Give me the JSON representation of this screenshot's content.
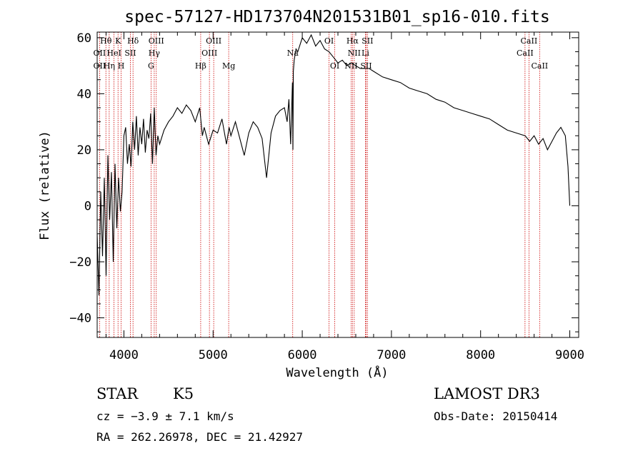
{
  "chart_data": {
    "type": "line",
    "title": "spec-57127-HD173704N201531B01_sp16-010.fits",
    "xlabel": "Wavelength (Å)",
    "ylabel": "Flux (relative)",
    "xlim": [
      3700,
      9100
    ],
    "ylim": [
      -47,
      62
    ],
    "xticks": [
      4000,
      5000,
      6000,
      7000,
      8000,
      9000
    ],
    "yticks": [
      -40,
      -20,
      0,
      20,
      40,
      60
    ],
    "xtick_labels": [
      "4000",
      "5000",
      "6000",
      "7000",
      "8000",
      "9000"
    ],
    "ytick_labels": [
      "−40",
      "−20",
      "0",
      "20",
      "40",
      "60"
    ],
    "series": [
      {
        "name": "flux",
        "x": [
          3700,
          3720,
          3740,
          3760,
          3780,
          3800,
          3820,
          3840,
          3860,
          3880,
          3900,
          3920,
          3940,
          3960,
          3980,
          4000,
          4020,
          4040,
          4060,
          4080,
          4100,
          4120,
          4140,
          4160,
          4180,
          4200,
          4220,
          4240,
          4260,
          4280,
          4300,
          4320,
          4340,
          4360,
          4380,
          4400,
          4450,
          4500,
          4550,
          4600,
          4650,
          4700,
          4750,
          4800,
          4850,
          4880,
          4900,
          4950,
          5000,
          5050,
          5100,
          5150,
          5180,
          5200,
          5250,
          5300,
          5350,
          5400,
          5450,
          5500,
          5550,
          5600,
          5650,
          5700,
          5750,
          5800,
          5830,
          5850,
          5870,
          5890,
          5895,
          5900,
          5910,
          5930,
          5950,
          5980,
          6000,
          6050,
          6100,
          6150,
          6200,
          6250,
          6300,
          6350,
          6400,
          6450,
          6500,
          6550,
          6600,
          6650,
          6700,
          6750,
          6800,
          6900,
          7000,
          7100,
          7200,
          7300,
          7400,
          7500,
          7600,
          7700,
          7800,
          7900,
          8000,
          8100,
          8200,
          8300,
          8400,
          8500,
          8550,
          8600,
          8650,
          8700,
          8750,
          8800,
          8850,
          8900,
          8950,
          8980,
          9000
        ],
        "y": [
          -10,
          -32,
          5,
          -18,
          10,
          -25,
          18,
          -5,
          12,
          -20,
          15,
          -8,
          10,
          -2,
          5,
          25,
          28,
          15,
          22,
          14,
          30,
          20,
          32,
          18,
          28,
          22,
          31,
          19,
          27,
          24,
          33,
          15,
          35,
          18,
          25,
          22,
          27,
          30,
          32,
          35,
          33,
          36,
          34,
          30,
          35,
          25,
          28,
          22,
          27,
          26,
          31,
          22,
          28,
          25,
          30,
          24,
          18,
          26,
          30,
          28,
          24,
          10,
          26,
          32,
          34,
          35,
          30,
          38,
          22,
          44,
          20,
          48,
          52,
          56,
          55,
          58,
          60,
          58,
          61,
          57,
          59,
          56,
          55,
          53,
          51,
          52,
          50,
          51,
          50,
          49,
          49,
          49,
          48,
          46,
          45,
          44,
          42,
          41,
          40,
          38,
          37,
          35,
          34,
          33,
          32,
          31,
          29,
          27,
          26,
          25,
          23,
          25,
          22,
          24,
          20,
          23,
          26,
          28,
          25,
          14,
          0
        ]
      }
    ],
    "line_markers": [
      {
        "name": "Oii",
        "x": 3727
      },
      {
        "name": "Hθ",
        "x": 3798
      },
      {
        "name": "Hη",
        "x": 3835
      },
      {
        "name": "HeI",
        "x": 3889
      },
      {
        "name": "K",
        "x": 3934
      },
      {
        "name": "H",
        "x": 3969
      },
      {
        "name": "Hδ",
        "x": 4102
      },
      {
        "name": "SII",
        "x": 4072
      },
      {
        "name": "G",
        "x": 4304
      },
      {
        "name": "Hγ",
        "x": 4340
      },
      {
        "name": "OIII",
        "x": 4363
      },
      {
        "name": "Hβ",
        "x": 4861
      },
      {
        "name": "OIII",
        "x": 4959
      },
      {
        "name": "OIII",
        "x": 5007
      },
      {
        "name": "Mg",
        "x": 5175
      },
      {
        "name": "Na",
        "x": 5893
      },
      {
        "name": "OI",
        "x": 6300
      },
      {
        "name": "OI",
        "x": 6364
      },
      {
        "name": "NII",
        "x": 6548
      },
      {
        "name": "Hα",
        "x": 6563
      },
      {
        "name": "NII",
        "x": 6583
      },
      {
        "name": "Li",
        "x": 6708
      },
      {
        "name": "SII",
        "x": 6716
      },
      {
        "name": "SII",
        "x": 6731
      },
      {
        "name": "CaII",
        "x": 8498
      },
      {
        "name": "CaII",
        "x": 8542
      },
      {
        "name": "CaII",
        "x": 8662
      }
    ],
    "line_labels": [
      {
        "text": "Hθ",
        "x": 3798,
        "row": 1
      },
      {
        "text": "K",
        "x": 3934,
        "row": 1
      },
      {
        "text": "Hδ",
        "x": 4102,
        "row": 1
      },
      {
        "text": "OIII",
        "x": 4363,
        "row": 1
      },
      {
        "text": "OIII",
        "x": 5007,
        "row": 1
      },
      {
        "text": "OI",
        "x": 6300,
        "row": 1
      },
      {
        "text": "Hα",
        "x": 6563,
        "row": 1
      },
      {
        "text": "SII",
        "x": 6731,
        "row": 1
      },
      {
        "text": "CaII",
        "x": 8542,
        "row": 1
      },
      {
        "text": "OII",
        "x": 3727,
        "row": 2
      },
      {
        "text": "HeI",
        "x": 3889,
        "row": 2
      },
      {
        "text": "SII",
        "x": 4072,
        "row": 2
      },
      {
        "text": "Hγ",
        "x": 4340,
        "row": 2
      },
      {
        "text": "OIII",
        "x": 4959,
        "row": 2
      },
      {
        "text": "Na",
        "x": 5893,
        "row": 2
      },
      {
        "text": "NII",
        "x": 6583,
        "row": 2
      },
      {
        "text": "Li",
        "x": 6708,
        "row": 2
      },
      {
        "text": "CaII",
        "x": 8498,
        "row": 2
      },
      {
        "text": "OII",
        "x": 3727,
        "row": 3
      },
      {
        "text": "Hη",
        "x": 3835,
        "row": 3
      },
      {
        "text": "H",
        "x": 3969,
        "row": 3
      },
      {
        "text": "G",
        "x": 4304,
        "row": 3
      },
      {
        "text": "Hβ",
        "x": 4861,
        "row": 3
      },
      {
        "text": "Mg",
        "x": 5175,
        "row": 3
      },
      {
        "text": "OI",
        "x": 6364,
        "row": 3
      },
      {
        "text": "NII",
        "x": 6548,
        "row": 3
      },
      {
        "text": "SII",
        "x": 6716,
        "row": 3
      },
      {
        "text": "CaII",
        "x": 8662,
        "row": 3
      }
    ],
    "colors": {
      "spectrum": "#000000",
      "markers": "#cc0000",
      "axes": "#000000"
    }
  },
  "info": {
    "class": "STAR",
    "subclass": "K5",
    "survey": "LAMOST DR3",
    "cz": "cz = −3.9 ± 7.1 km/s",
    "obs_date": "Obs-Date: 20150414",
    "coords": "RA = 262.26978, DEC =  21.42927"
  }
}
